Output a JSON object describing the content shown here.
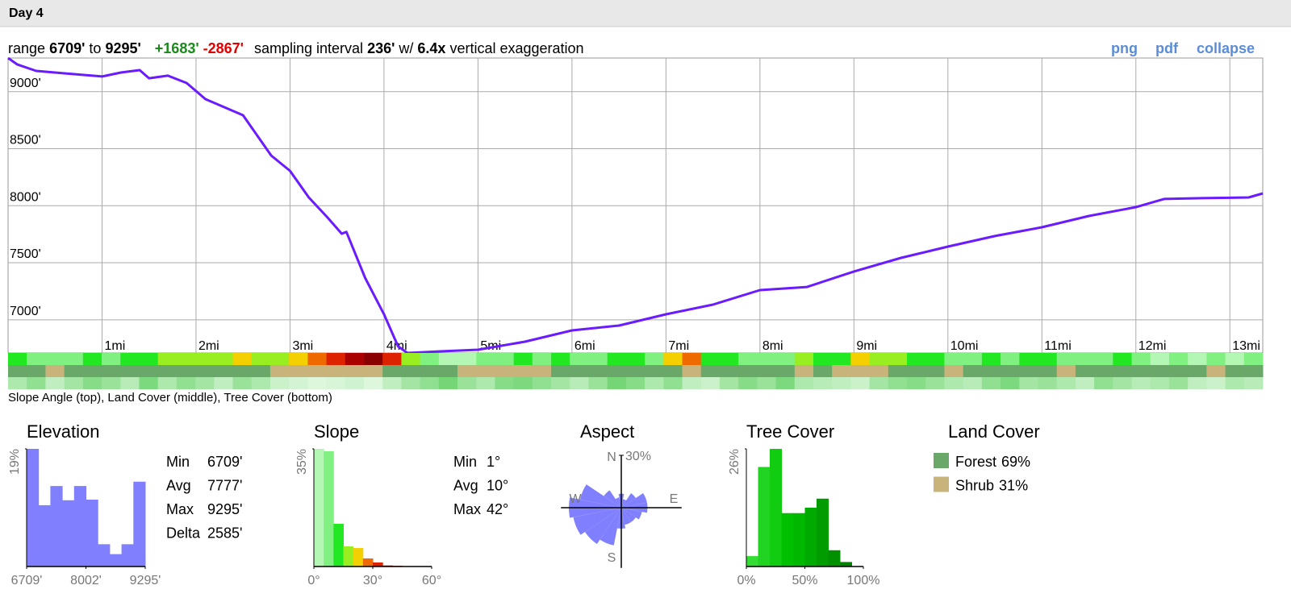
{
  "header": {
    "title": "Day 4"
  },
  "summary": {
    "range_label": "range",
    "min": "6709'",
    "to": "to",
    "max": "9295'",
    "gain": "+1683'",
    "loss": "-2867'",
    "interval_label": "sampling interval",
    "interval": "236'",
    "with": "w/",
    "exaggeration": "6.4x",
    "exaggeration_label": "vertical exaggeration"
  },
  "links": [
    "png",
    "pdf",
    "collapse"
  ],
  "chart_data": [
    {
      "type": "line",
      "color": "#6a1bff",
      "x": [
        0,
        0.1,
        0.3,
        0.6,
        1.0,
        1.2,
        1.4,
        1.5,
        1.7,
        1.9,
        2.1,
        2.5,
        2.8,
        3.0,
        3.2,
        3.4,
        3.55,
        3.6,
        3.8,
        4.0,
        4.15,
        4.25,
        4.6,
        5.0,
        5.5,
        6.0,
        6.5,
        7.0,
        7.5,
        8.0,
        8.5,
        9.0,
        9.5,
        10.0,
        10.5,
        11.0,
        11.5,
        12.0,
        12.3,
        12.7,
        13.2,
        13.35
      ],
      "values": [
        9295,
        9238,
        9182,
        9161,
        9133,
        9168,
        9189,
        9118,
        9140,
        9076,
        8935,
        8793,
        8440,
        8306,
        8073,
        7896,
        7755,
        7770,
        7366,
        7048,
        6766,
        6709,
        6723,
        6737,
        6808,
        6907,
        6949,
        7048,
        7133,
        7260,
        7288,
        7423,
        7543,
        7642,
        7734,
        7811,
        7910,
        7988,
        8059,
        8066,
        8073,
        8108
      ],
      "xlim": [
        0,
        13.35
      ],
      "xticks": [
        {
          "value": 1,
          "label": "1mi"
        },
        {
          "value": 2,
          "label": "2mi"
        },
        {
          "value": 3,
          "label": "3mi"
        },
        {
          "value": 4,
          "label": "4mi"
        },
        {
          "value": 5,
          "label": "5mi"
        },
        {
          "value": 6,
          "label": "6mi"
        },
        {
          "value": 7,
          "label": "7mi"
        },
        {
          "value": 8,
          "label": "8mi"
        },
        {
          "value": 9,
          "label": "9mi"
        },
        {
          "value": 10,
          "label": "10mi"
        },
        {
          "value": 11,
          "label": "11mi"
        },
        {
          "value": 12,
          "label": "12mi"
        },
        {
          "value": 13,
          "label": "13mi"
        }
      ],
      "ylim": [
        6709,
        9295
      ],
      "yticks": [
        {
          "value": 7000,
          "label": "7000'"
        },
        {
          "value": 7500,
          "label": "7500'"
        },
        {
          "value": 8000,
          "label": "8000'"
        },
        {
          "value": 8500,
          "label": "8500'"
        },
        {
          "value": 9000,
          "label": "9000'"
        }
      ],
      "grid": true
    },
    {
      "type": "histogram",
      "title": "Elevation",
      "color": "#8080ff",
      "bins": [
        6709,
        6967.6,
        7226.2,
        7484.8,
        7743.4,
        8002,
        8260.6,
        8519.2,
        8777.8,
        9036.4,
        9295
      ],
      "values": [
        19,
        9.9,
        13,
        10.7,
        13,
        10.8,
        3.6,
        2,
        3.6,
        13.7
      ],
      "xlim": [
        6709,
        9295
      ],
      "xticks": [
        {
          "value": 6709,
          "label": "6709'"
        },
        {
          "value": 8002,
          "label": "8002'"
        },
        {
          "value": 9295,
          "label": "9295'"
        }
      ],
      "ylim": [
        0,
        19
      ],
      "yticks": [
        {
          "value": 19,
          "label": "19%"
        }
      ]
    },
    {
      "type": "histogram",
      "title": "Slope",
      "bins": [
        0,
        5,
        10,
        15,
        20,
        25,
        30,
        35,
        40,
        45
      ],
      "values": [
        35,
        34.3,
        12.7,
        6,
        5.5,
        2.4,
        1.2,
        0.3,
        0.2
      ],
      "colors": [
        "#b4f7b4",
        "#80f080",
        "#22e822",
        "#99ee22",
        "#f5d000",
        "#ee6a00",
        "#dd2200",
        "#aa0000",
        "#880000"
      ],
      "xlim": [
        0,
        60
      ],
      "xticks": [
        {
          "value": 0,
          "label": "0°"
        },
        {
          "value": 30,
          "label": "30°"
        },
        {
          "value": 60,
          "label": "60°"
        }
      ],
      "ylim": [
        0,
        35
      ],
      "yticks": [
        {
          "value": 35,
          "label": "35%"
        }
      ]
    },
    {
      "type": "rose",
      "title": "Aspect",
      "color": "#8080ff",
      "values": [
        8,
        5,
        10,
        15,
        15,
        12,
        10,
        10,
        12,
        22,
        25,
        28,
        30,
        24,
        12,
        6
      ],
      "axis_labels": [
        "N",
        "E",
        "S",
        "W"
      ],
      "rlim": [
        0,
        30
      ],
      "rticks": [
        {
          "value": 30,
          "label": "30%"
        }
      ]
    },
    {
      "type": "histogram",
      "title": "Tree Cover",
      "bins": [
        0,
        10,
        20,
        30,
        40,
        50,
        60,
        70,
        80,
        90,
        100
      ],
      "values": [
        2.3,
        22,
        26,
        11.8,
        11.8,
        13,
        15,
        3.6,
        1,
        0
      ],
      "colors": [
        "#33dd33",
        "#22d422",
        "#11cc11",
        "#00c000",
        "#00b800",
        "#00aa00",
        "#009c00",
        "#009000",
        "#008400",
        "#007800"
      ],
      "xlim": [
        0,
        100
      ],
      "xticks": [
        {
          "value": 0,
          "label": "0%"
        },
        {
          "value": 50,
          "label": "50%"
        },
        {
          "value": 100,
          "label": "100%"
        }
      ],
      "ylim": [
        0,
        26
      ],
      "yticks": [
        {
          "value": 26,
          "label": "26%"
        }
      ]
    }
  ],
  "strips": {
    "caption": "Slope Angle (top), Land Cover (middle), Tree Cover (bottom)",
    "slope": [
      12,
      8,
      6,
      5,
      10,
      9,
      14,
      12,
      15,
      16,
      18,
      17,
      20,
      16,
      15,
      22,
      28,
      32,
      38,
      42,
      30,
      18,
      5,
      3,
      4,
      6,
      8,
      10,
      7,
      12,
      5,
      9,
      11,
      12,
      8,
      20,
      26,
      14,
      10,
      9,
      6,
      8,
      15,
      12,
      14,
      22,
      18,
      15,
      10,
      12,
      8,
      9,
      11,
      7,
      10,
      12,
      9,
      8,
      6,
      10,
      5,
      4,
      6,
      3,
      5,
      4,
      6
    ],
    "land_cover": [
      0,
      0,
      1,
      0,
      0,
      0,
      0,
      0,
      0,
      0,
      0,
      0,
      0,
      0,
      1,
      1,
      1,
      1,
      1,
      1,
      0,
      0,
      0,
      0,
      1,
      1,
      1,
      1,
      1,
      0,
      0,
      0,
      0,
      0,
      0,
      0,
      1,
      0,
      0,
      0,
      0,
      0,
      1,
      0,
      1,
      1,
      1,
      0,
      0,
      0,
      1,
      0,
      0,
      0,
      0,
      0,
      1,
      0,
      0,
      0,
      0,
      0,
      0,
      0,
      1,
      0,
      0
    ],
    "tree_cover": [
      30,
      45,
      20,
      35,
      50,
      40,
      25,
      55,
      30,
      45,
      35,
      20,
      40,
      30,
      15,
      10,
      5,
      8,
      12,
      5,
      20,
      35,
      45,
      60,
      40,
      30,
      50,
      55,
      45,
      35,
      25,
      40,
      60,
      50,
      30,
      45,
      20,
      15,
      35,
      50,
      40,
      55,
      30,
      25,
      20,
      15,
      35,
      45,
      50,
      40,
      30,
      25,
      45,
      55,
      35,
      40,
      30,
      20,
      45,
      35,
      25,
      30,
      40,
      20,
      15,
      30,
      25
    ]
  },
  "elevation_stats": [
    {
      "label": "Min",
      "value": "6709'"
    },
    {
      "label": "Avg",
      "value": "7777'"
    },
    {
      "label": "Max",
      "value": "9295'"
    },
    {
      "label": "Delta",
      "value": "2585'"
    }
  ],
  "slope_stats": [
    {
      "label": "Min",
      "value": "1°"
    },
    {
      "label": "Avg",
      "value": "10°"
    },
    {
      "label": "Max",
      "value": "42°"
    }
  ],
  "land_cover": {
    "title": "Land Cover",
    "items": [
      {
        "name": "Forest",
        "value": "69%",
        "color": "#6aa86a"
      },
      {
        "name": "Shrub",
        "value": "31%",
        "color": "#c8b47a"
      }
    ]
  }
}
